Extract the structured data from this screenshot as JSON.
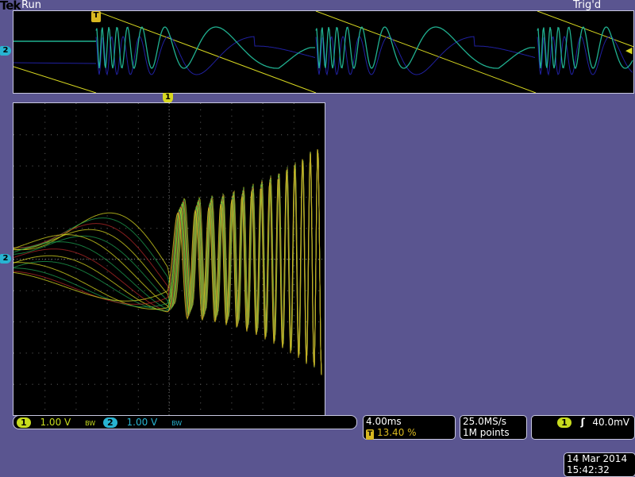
{
  "header": {
    "brand": "Tek",
    "run_state": "Run",
    "trigger_state": "Trig'd"
  },
  "markers": {
    "trigger": "T",
    "ch1": "1",
    "ch2": "2"
  },
  "channels": [
    {
      "number": "1",
      "scale": "1.00 V",
      "color": "#c8dc1e"
    },
    {
      "number": "2",
      "scale": "1.00 V",
      "color": "#28b4d2"
    }
  ],
  "timebase": {
    "scale": "4.00ms",
    "trigger_icon": "T",
    "trigger_position": "13.40 %"
  },
  "acquisition": {
    "sample_rate": "25.0MS/s",
    "record_length": "1M points"
  },
  "trigger": {
    "source": "1",
    "slope_icon": "rising-edge",
    "slope_glyph": "ʃ",
    "level": "40.0mV"
  },
  "datetime": {
    "date": "14 Mar 2014",
    "time": "15:42:32"
  },
  "display": {
    "mode": "XY",
    "colors": {
      "trace_yellow": "#d8d820",
      "trace_green": "#1ea050",
      "trace_teal": "#20b090",
      "trace_red": "#b42828",
      "trace_blue": "#2020a0"
    }
  }
}
